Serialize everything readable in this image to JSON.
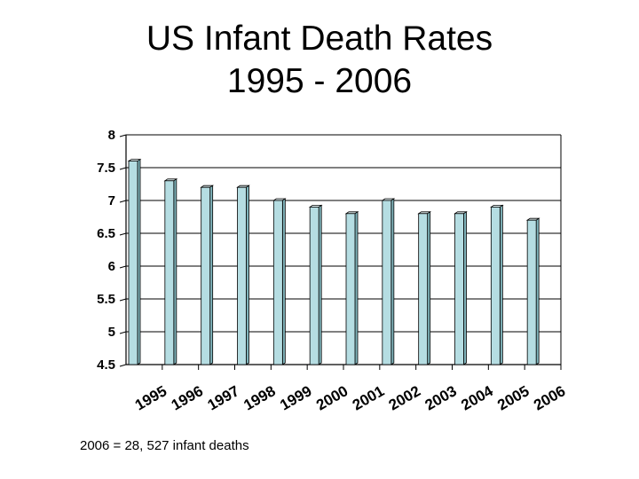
{
  "chart_data": {
    "type": "bar",
    "title_line1": "US Infant Death Rates",
    "title_line2": "1995 - 2006",
    "categories": [
      "1995",
      "1996",
      "1997",
      "1998",
      "1999",
      "2000",
      "2001",
      "2002",
      "2003",
      "2004",
      "2005",
      "2006"
    ],
    "values": [
      7.6,
      7.3,
      7.2,
      7.2,
      7.0,
      6.9,
      6.8,
      7.0,
      6.8,
      6.8,
      6.9,
      6.7
    ],
    "xlabel": "",
    "ylabel": "",
    "ylim": [
      4.5,
      8
    ],
    "yticks": [
      "4.5",
      "5",
      "5.5",
      "6",
      "6.5",
      "7",
      "7.5",
      "8"
    ],
    "grid": true,
    "bar_color": "#b5dde2",
    "bar_edge_color": "#000000"
  },
  "footnote": "2006 = 28, 527 infant deaths"
}
